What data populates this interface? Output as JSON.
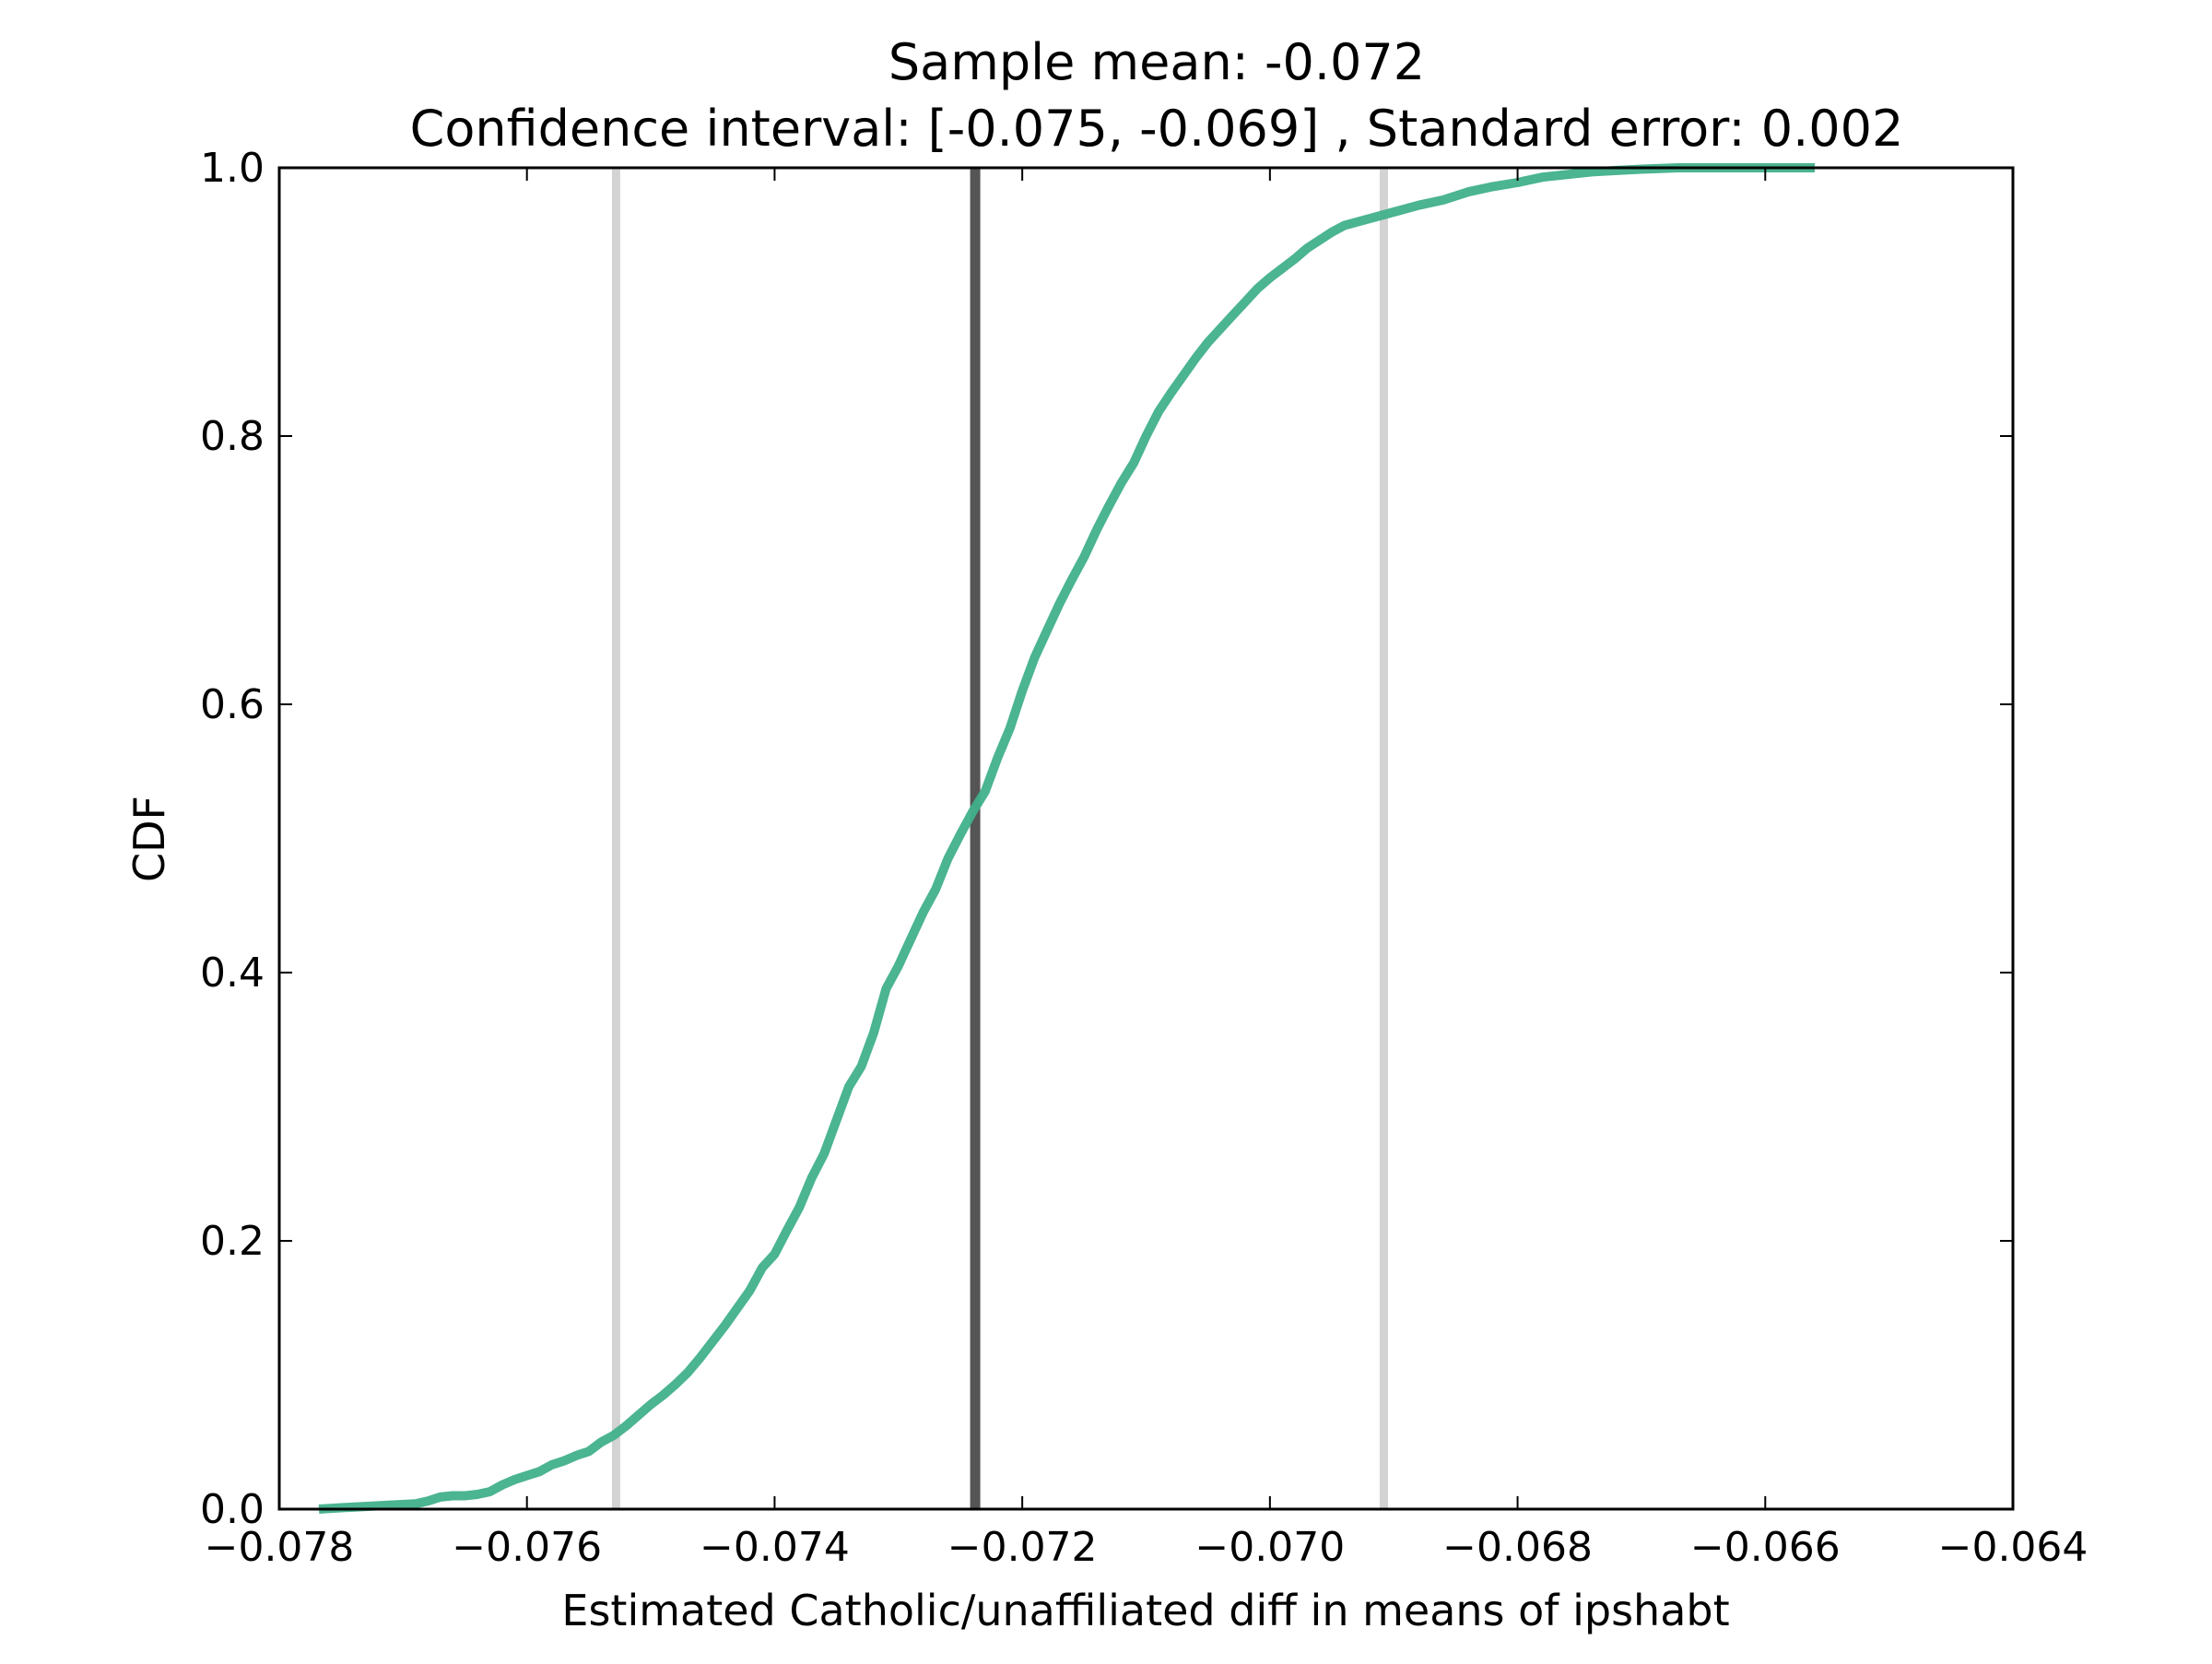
{
  "chart_data": {
    "type": "line",
    "title_line1": "Sample mean: -0.072",
    "title_line2": "Confidence interval: [-0.075, -0.069] , Standard error: 0.002",
    "xlabel": "Estimated Catholic/unaffiliated diff in means of ipshabt",
    "ylabel": "CDF",
    "xlim": [
      -0.078,
      -0.064
    ],
    "ylim": [
      0.0,
      1.0
    ],
    "xticks": [
      -0.078,
      -0.076,
      -0.074,
      -0.072,
      -0.07,
      -0.068,
      -0.066,
      -0.064
    ],
    "xtick_labels": [
      "−0.078",
      "−0.076",
      "−0.074",
      "−0.072",
      "−0.070",
      "−0.068",
      "−0.066",
      "−0.064"
    ],
    "yticks": [
      0.0,
      0.2,
      0.4,
      0.6,
      0.8,
      1.0
    ],
    "ytick_labels": [
      "0.0",
      "0.2",
      "0.4",
      "0.6",
      "0.8",
      "1.0"
    ],
    "grid": false,
    "vlines": [
      {
        "role": "ci-lower",
        "x": -0.07528,
        "color": "#d3d3d3"
      },
      {
        "role": "ci-upper",
        "x": -0.06908,
        "color": "#d3d3d3"
      },
      {
        "role": "mean",
        "x": -0.07238,
        "color": "#555555"
      }
    ],
    "series": [
      {
        "color": "#41b08a",
        "points": [
          [
            -0.07768,
            0.0
          ],
          [
            -0.0775,
            0.001
          ],
          [
            -0.0773,
            0.002
          ],
          [
            -0.0771,
            0.003
          ],
          [
            -0.0769,
            0.004
          ],
          [
            -0.0768,
            0.006
          ],
          [
            -0.0767,
            0.009
          ],
          [
            -0.0766,
            0.01
          ],
          [
            -0.0765,
            0.01
          ],
          [
            -0.0764,
            0.011
          ],
          [
            -0.0763,
            0.013
          ],
          [
            -0.0762,
            0.018
          ],
          [
            -0.0761,
            0.022
          ],
          [
            -0.076,
            0.025
          ],
          [
            -0.0759,
            0.028
          ],
          [
            -0.0758,
            0.033
          ],
          [
            -0.0757,
            0.036
          ],
          [
            -0.0756,
            0.04
          ],
          [
            -0.0755,
            0.043
          ],
          [
            -0.0754,
            0.05
          ],
          [
            -0.0753,
            0.055
          ],
          [
            -0.0752,
            0.062
          ],
          [
            -0.0751,
            0.07
          ],
          [
            -0.075,
            0.078
          ],
          [
            -0.0749,
            0.085
          ],
          [
            -0.0748,
            0.093
          ],
          [
            -0.0747,
            0.102
          ],
          [
            -0.0746,
            0.113
          ],
          [
            -0.0745,
            0.125
          ],
          [
            -0.0744,
            0.137
          ],
          [
            -0.0743,
            0.15
          ],
          [
            -0.0742,
            0.163
          ],
          [
            -0.0741,
            0.18
          ],
          [
            -0.074,
            0.19
          ],
          [
            -0.0739,
            0.208
          ],
          [
            -0.0738,
            0.225
          ],
          [
            -0.0737,
            0.247
          ],
          [
            -0.0736,
            0.265
          ],
          [
            -0.0735,
            0.29
          ],
          [
            -0.0734,
            0.315
          ],
          [
            -0.0733,
            0.33
          ],
          [
            -0.0732,
            0.355
          ],
          [
            -0.0731,
            0.388
          ],
          [
            -0.073,
            0.405
          ],
          [
            -0.0729,
            0.425
          ],
          [
            -0.0728,
            0.445
          ],
          [
            -0.0727,
            0.462
          ],
          [
            -0.0726,
            0.485
          ],
          [
            -0.0725,
            0.503
          ],
          [
            -0.0724,
            0.52
          ],
          [
            -0.0723,
            0.535
          ],
          [
            -0.0722,
            0.56
          ],
          [
            -0.0721,
            0.582
          ],
          [
            -0.072,
            0.61
          ],
          [
            -0.0719,
            0.635
          ],
          [
            -0.0718,
            0.655
          ],
          [
            -0.0717,
            0.675
          ],
          [
            -0.0716,
            0.693
          ],
          [
            -0.0715,
            0.71
          ],
          [
            -0.0714,
            0.73
          ],
          [
            -0.0713,
            0.748
          ],
          [
            -0.0712,
            0.765
          ],
          [
            -0.0711,
            0.78
          ],
          [
            -0.071,
            0.8
          ],
          [
            -0.0709,
            0.818
          ],
          [
            -0.0708,
            0.832
          ],
          [
            -0.0707,
            0.845
          ],
          [
            -0.0706,
            0.858
          ],
          [
            -0.0705,
            0.87
          ],
          [
            -0.0704,
            0.88
          ],
          [
            -0.0703,
            0.89
          ],
          [
            -0.0702,
            0.9
          ],
          [
            -0.0701,
            0.91
          ],
          [
            -0.07,
            0.918
          ],
          [
            -0.0699,
            0.925
          ],
          [
            -0.0698,
            0.932
          ],
          [
            -0.0697,
            0.94
          ],
          [
            -0.0696,
            0.946
          ],
          [
            -0.0695,
            0.952
          ],
          [
            -0.0694,
            0.957
          ],
          [
            -0.0692,
            0.962
          ],
          [
            -0.069,
            0.967
          ],
          [
            -0.0688,
            0.972
          ],
          [
            -0.0686,
            0.976
          ],
          [
            -0.0684,
            0.982
          ],
          [
            -0.0682,
            0.986
          ],
          [
            -0.068,
            0.989
          ],
          [
            -0.0678,
            0.993
          ],
          [
            -0.0676,
            0.995
          ],
          [
            -0.0674,
            0.997
          ],
          [
            -0.0672,
            0.998
          ],
          [
            -0.067,
            0.999
          ],
          [
            -0.0667,
            1.0
          ],
          [
            -0.0664,
            1.0
          ],
          [
            -0.0656,
            1.0
          ]
        ]
      }
    ]
  }
}
